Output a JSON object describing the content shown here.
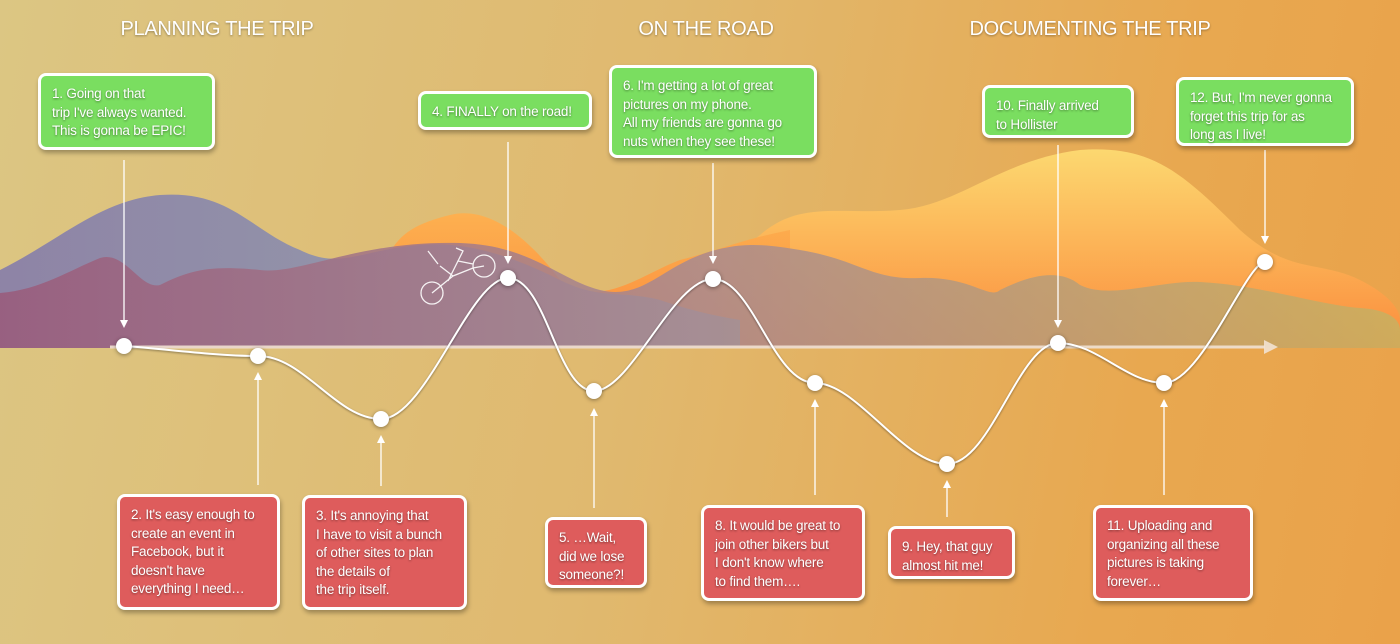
{
  "phases": [
    "PLANNING THE TRIP",
    "ON THE ROAD",
    "DOCUMENTING THE TRIP"
  ],
  "colors": {
    "positive": "#7ade60",
    "negative": "#de5c5c",
    "line": "#ffffff"
  },
  "icons": {
    "rider": "motorcycle-icon"
  },
  "steps": [
    {
      "n": 1,
      "text": "1. Going on that\ntrip I've always wanted.\nThis is gonna be EPIC!",
      "tone": "positive"
    },
    {
      "n": 2,
      "text": "2. It's easy enough to\ncreate an event in\nFacebook, but it\ndoesn't have\neverything I need…",
      "tone": "negative"
    },
    {
      "n": 3,
      "text": "3. It's annoying that\nI have to visit a bunch\nof other sites to plan\nthe details of\nthe trip itself.",
      "tone": "negative"
    },
    {
      "n": 4,
      "text": "4. FINALLY on the road!",
      "tone": "positive"
    },
    {
      "n": 5,
      "text": "5. …Wait,\ndid we lose\nsomeone?!",
      "tone": "negative"
    },
    {
      "n": 6,
      "text": "6. I'm getting a lot of great\npictures on my phone.\nAll my friends are gonna go\nnuts when they see these!",
      "tone": "positive"
    },
    {
      "n": 8,
      "text": "8. It would be great to\njoin other bikers but\nI don't know where\nto find them….",
      "tone": "negative"
    },
    {
      "n": 9,
      "text": "9. Hey, that guy\nalmost hit me!",
      "tone": "negative"
    },
    {
      "n": 10,
      "text": "10. Finally arrived\nto Hollister",
      "tone": "positive"
    },
    {
      "n": 11,
      "text": "11. Uploading and\norganizing all these\npictures is taking\nforever…",
      "tone": "negative"
    },
    {
      "n": 12,
      "text": "12. But, I'm never gonna\nforget this trip for as\nlong as I live!",
      "tone": "positive"
    }
  ]
}
